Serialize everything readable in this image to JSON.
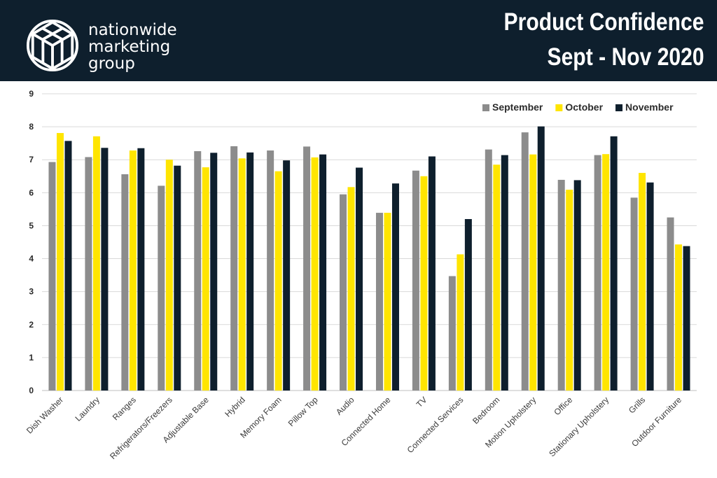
{
  "header": {
    "brand_lines": [
      "nationwide",
      "marketing",
      "group"
    ],
    "title_lines": [
      "Product Confidence",
      "Sept - Nov 2020"
    ],
    "background": "#0e1f2d",
    "logo_icon": "cube-polyhedron-icon"
  },
  "chart_data": {
    "type": "bar",
    "title": "Product Confidence Sept - Nov 2020",
    "xlabel": "",
    "ylabel": "",
    "ylim": [
      0,
      9
    ],
    "yticks": [
      0,
      1,
      2,
      3,
      4,
      5,
      6,
      7,
      8,
      9
    ],
    "grid": true,
    "legend_position": "top-right",
    "categories": [
      "Dish Washer",
      "Laundry",
      "Ranges",
      "Refrigerators/Freezers",
      "Adjustable Base",
      "Hybrid",
      "Memory Foam",
      "Pillow Top",
      "Audio",
      "Connected Home",
      "TV",
      "Connected Services",
      "Bedroom",
      "Motion Upholstery",
      "Office",
      "Stationary Upholstery",
      "Grills",
      "Outdoor Furniture"
    ],
    "series": [
      {
        "name": "September",
        "color": "#8c8c8c",
        "values": [
          6.93,
          7.08,
          6.56,
          6.21,
          7.26,
          7.41,
          7.28,
          7.4,
          5.95,
          5.39,
          6.67,
          3.47,
          7.31,
          7.83,
          6.39,
          7.14,
          5.85,
          5.25
        ]
      },
      {
        "name": "October",
        "color": "#ffe500",
        "values": [
          7.81,
          7.71,
          7.28,
          7.0,
          6.77,
          7.04,
          6.65,
          7.07,
          6.17,
          5.39,
          6.5,
          4.13,
          6.85,
          7.16,
          6.09,
          7.17,
          6.6,
          4.43
        ]
      },
      {
        "name": "November",
        "color": "#0e1f2d",
        "values": [
          7.57,
          7.36,
          7.35,
          6.82,
          7.21,
          7.22,
          6.98,
          7.16,
          6.76,
          6.28,
          7.1,
          5.2,
          7.14,
          8.01,
          6.38,
          7.71,
          6.31,
          4.38
        ]
      }
    ]
  }
}
